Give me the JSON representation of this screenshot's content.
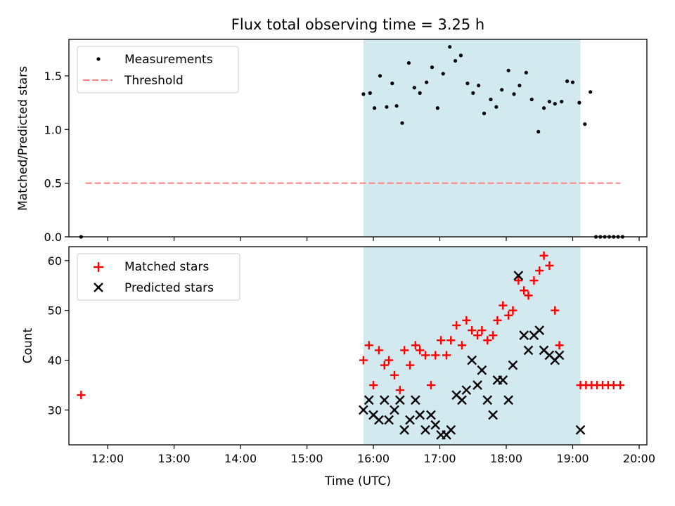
{
  "title": "Flux total observing time = 3.25 h",
  "chart_data": [
    {
      "type": "scatter",
      "ylabel": "Matched/Predicted stars",
      "xlabel": "",
      "xlim": [
        "11:25",
        "20:07"
      ],
      "ylim": [
        0,
        1.84
      ],
      "yticks": [
        "0.0",
        "0.5",
        "1.0",
        "1.5"
      ],
      "grid": false,
      "legend_position": "top-left",
      "shaded_interval": {
        "start": "15:51",
        "end": "19:07",
        "color": "#d3e9f0"
      },
      "threshold": {
        "name": "Threshold",
        "value": 0.5,
        "x_start": "11:40",
        "x_end": "19:43",
        "color": "#ff7f7f",
        "style": "dashed"
      },
      "series": [
        {
          "name": "Measurements",
          "marker": "dot",
          "color": "#000000",
          "points": [
            [
              "11:36",
              0.0
            ],
            [
              "15:51",
              1.33
            ],
            [
              "15:57",
              1.34
            ],
            [
              "16:01",
              1.2
            ],
            [
              "16:06",
              1.5
            ],
            [
              "16:12",
              1.21
            ],
            [
              "16:17",
              1.43
            ],
            [
              "16:21",
              1.22
            ],
            [
              "16:26",
              1.06
            ],
            [
              "16:32",
              1.62
            ],
            [
              "16:37",
              1.39
            ],
            [
              "16:42",
              1.34
            ],
            [
              "16:48",
              1.44
            ],
            [
              "16:53",
              1.58
            ],
            [
              "16:58",
              1.2
            ],
            [
              "17:03",
              1.52
            ],
            [
              "17:09",
              1.77
            ],
            [
              "17:14",
              1.64
            ],
            [
              "17:19",
              1.69
            ],
            [
              "17:25",
              1.43
            ],
            [
              "17:30",
              1.34
            ],
            [
              "17:35",
              1.41
            ],
            [
              "17:40",
              1.15
            ],
            [
              "17:46",
              1.28
            ],
            [
              "17:51",
              1.21
            ],
            [
              "17:56",
              1.37
            ],
            [
              "18:02",
              1.55
            ],
            [
              "18:07",
              1.33
            ],
            [
              "18:12",
              1.41
            ],
            [
              "18:18",
              1.53
            ],
            [
              "18:23",
              1.28
            ],
            [
              "18:29",
              0.98
            ],
            [
              "18:34",
              1.2
            ],
            [
              "18:39",
              1.26
            ],
            [
              "18:44",
              1.24
            ],
            [
              "18:50",
              1.26
            ],
            [
              "18:55",
              1.45
            ],
            [
              "19:00",
              1.44
            ],
            [
              "19:06",
              1.25
            ],
            [
              "19:11",
              1.05
            ],
            [
              "19:16",
              1.35
            ],
            [
              "19:21",
              0.0
            ],
            [
              "19:25",
              0.0
            ],
            [
              "19:29",
              0.0
            ],
            [
              "19:33",
              0.0
            ],
            [
              "19:37",
              0.0
            ],
            [
              "19:41",
              0.0
            ],
            [
              "19:45",
              0.0
            ]
          ]
        }
      ]
    },
    {
      "type": "scatter",
      "ylabel": "Count",
      "xlabel": "Time (UTC)",
      "xlim": [
        "11:25",
        "20:07"
      ],
      "ylim": [
        23,
        62.8
      ],
      "yticks": [
        "30",
        "40",
        "50",
        "60"
      ],
      "xticks": [
        "12:00",
        "13:00",
        "14:00",
        "15:00",
        "16:00",
        "17:00",
        "18:00",
        "19:00",
        "20:00"
      ],
      "grid": false,
      "legend_position": "top-left",
      "shaded_interval": {
        "start": "15:51",
        "end": "19:07",
        "color": "#d3e9f0"
      },
      "series": [
        {
          "name": "Matched stars",
          "marker": "plus",
          "color": "#ff0000",
          "points": [
            [
              "11:36",
              33
            ],
            [
              "15:51",
              40
            ],
            [
              "15:56",
              43
            ],
            [
              "16:00",
              35
            ],
            [
              "16:05",
              42
            ],
            [
              "16:10",
              39
            ],
            [
              "16:14",
              40
            ],
            [
              "16:19",
              37
            ],
            [
              "16:24",
              34
            ],
            [
              "16:28",
              42
            ],
            [
              "16:33",
              39
            ],
            [
              "16:38",
              43
            ],
            [
              "16:42",
              42
            ],
            [
              "16:47",
              41
            ],
            [
              "16:52",
              35
            ],
            [
              "16:56",
              41
            ],
            [
              "17:01",
              44
            ],
            [
              "17:06",
              41
            ],
            [
              "17:10",
              44
            ],
            [
              "17:15",
              47
            ],
            [
              "17:20",
              43
            ],
            [
              "17:24",
              48
            ],
            [
              "17:29",
              46
            ],
            [
              "17:34",
              45
            ],
            [
              "17:38",
              46
            ],
            [
              "17:43",
              44
            ],
            [
              "17:48",
              45
            ],
            [
              "17:52",
              48
            ],
            [
              "17:57",
              51
            ],
            [
              "18:02",
              49
            ],
            [
              "18:06",
              50
            ],
            [
              "18:11",
              56
            ],
            [
              "18:16",
              54
            ],
            [
              "18:20",
              53
            ],
            [
              "18:25",
              56
            ],
            [
              "18:30",
              58
            ],
            [
              "18:34",
              61
            ],
            [
              "18:39",
              59
            ],
            [
              "18:44",
              50
            ],
            [
              "18:48",
              43
            ],
            [
              "19:07",
              35
            ],
            [
              "19:12",
              35
            ],
            [
              "19:17",
              35
            ],
            [
              "19:22",
              35
            ],
            [
              "19:27",
              35
            ],
            [
              "19:32",
              35
            ],
            [
              "19:37",
              35
            ],
            [
              "19:43",
              35
            ]
          ]
        },
        {
          "name": "Predicted stars",
          "marker": "x",
          "color": "#000000",
          "points": [
            [
              "15:51",
              30
            ],
            [
              "15:56",
              32
            ],
            [
              "16:00",
              29
            ],
            [
              "16:05",
              28
            ],
            [
              "16:10",
              32
            ],
            [
              "16:14",
              28
            ],
            [
              "16:19",
              30
            ],
            [
              "16:24",
              32
            ],
            [
              "16:28",
              26
            ],
            [
              "16:33",
              28
            ],
            [
              "16:38",
              32
            ],
            [
              "16:42",
              29
            ],
            [
              "16:47",
              26
            ],
            [
              "16:52",
              29
            ],
            [
              "16:56",
              27
            ],
            [
              "17:01",
              25
            ],
            [
              "17:06",
              25
            ],
            [
              "17:10",
              26
            ],
            [
              "17:15",
              33
            ],
            [
              "17:20",
              32
            ],
            [
              "17:24",
              34
            ],
            [
              "17:29",
              40
            ],
            [
              "17:34",
              35
            ],
            [
              "17:38",
              38
            ],
            [
              "17:43",
              32
            ],
            [
              "17:48",
              29
            ],
            [
              "17:52",
              36
            ],
            [
              "17:57",
              36
            ],
            [
              "18:02",
              32
            ],
            [
              "18:06",
              39
            ],
            [
              "18:11",
              57
            ],
            [
              "18:16",
              45
            ],
            [
              "18:20",
              42
            ],
            [
              "18:25",
              45
            ],
            [
              "18:30",
              46
            ],
            [
              "18:34",
              42
            ],
            [
              "18:39",
              41
            ],
            [
              "18:44",
              40
            ],
            [
              "18:48",
              41
            ],
            [
              "19:07",
              26
            ]
          ]
        }
      ]
    }
  ]
}
